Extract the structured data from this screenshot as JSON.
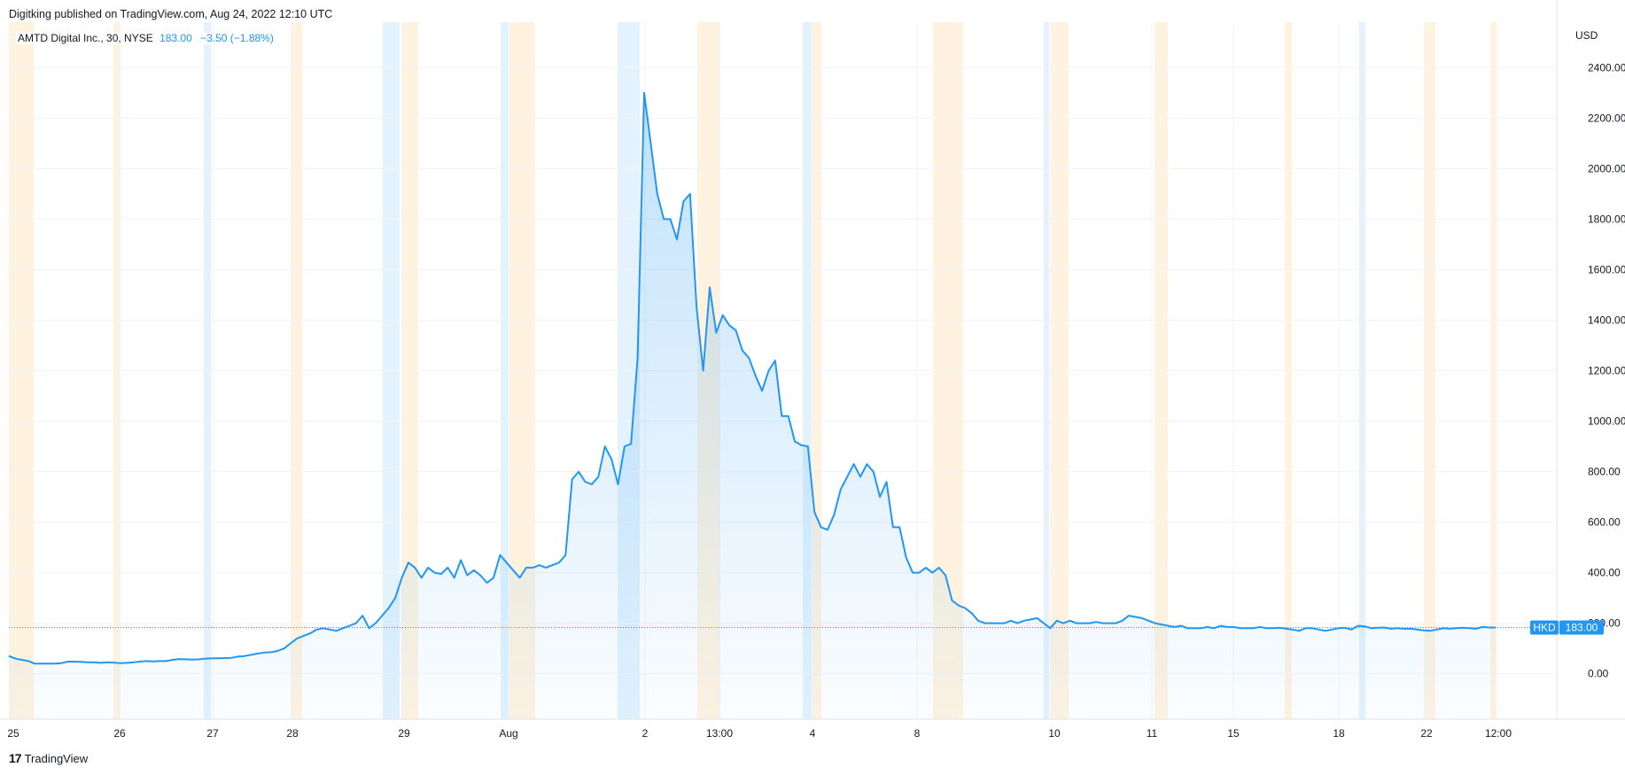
{
  "header": {
    "published": "Digitking published on TradingView.com, Aug 24, 2022 12:10 UTC"
  },
  "legend": {
    "symbol": "AMTD Digital Inc., 30, NYSE",
    "last_price": "183.00",
    "change": "−3.50 (−1.88%)"
  },
  "price_label": {
    "currency_tag": "HKD",
    "value": "183.00"
  },
  "footer": {
    "brand": "TradingView",
    "logo": "tradingview-logo-icon"
  },
  "colors": {
    "line": "#2196f3",
    "area_top": "#2196f3",
    "premarket_band": "#e3f2fd",
    "postmarket_band": "#fff3e0",
    "grid": "#f0f3fa",
    "axis_border": "#e0e3eb",
    "price_tag": "#2196f3"
  },
  "chart_data": {
    "type": "area",
    "title": "AMTD Digital Inc., 30, NYSE",
    "ylabel": "USD",
    "ylim": [
      -180,
      2580
    ],
    "y_ticks": [
      "0.00",
      "200.00",
      "400.00",
      "600.00",
      "800.00",
      "1000.00",
      "1200.00",
      "1400.00",
      "1600.00",
      "1800.00",
      "2000.00",
      "2200.00",
      "2400.00"
    ],
    "x_tick_labels": [
      "25",
      "26",
      "27",
      "28",
      "29",
      "Aug",
      "2",
      "13:00",
      "4",
      "8",
      "10",
      "11",
      "15",
      "18",
      "22",
      "12:00"
    ],
    "grid": true,
    "legend_position": "top-left",
    "series": [
      {
        "values": [
          70,
          60,
          55,
          50,
          40,
          40,
          40,
          40,
          42,
          48,
          48,
          47,
          45,
          45,
          43,
          45,
          44,
          42,
          43,
          45,
          48,
          50,
          49,
          50,
          50,
          55,
          58,
          57,
          56,
          57,
          60,
          61,
          61,
          62,
          63,
          68,
          70,
          75,
          80,
          84,
          85,
          90,
          100,
          120,
          140,
          150,
          160,
          175,
          180,
          175,
          170,
          180,
          190,
          200,
          230,
          180,
          200,
          230,
          260,
          300,
          380,
          440,
          420,
          380,
          420,
          400,
          395,
          420,
          380,
          450,
          390,
          410,
          390,
          360,
          380,
          470,
          440,
          410,
          380,
          420,
          420,
          430,
          420,
          430,
          440,
          470,
          770,
          800,
          760,
          750,
          780,
          900,
          850,
          750,
          900,
          910,
          1250,
          2300,
          2100,
          1900,
          1800,
          1800,
          1720,
          1870,
          1900,
          1450,
          1200,
          1530,
          1350,
          1420,
          1380,
          1360,
          1280,
          1250,
          1180,
          1120,
          1200,
          1240,
          1020,
          1020,
          920,
          905,
          900,
          640,
          580,
          570,
          630,
          730,
          780,
          830,
          780,
          830,
          800,
          700,
          760,
          580,
          580,
          460,
          400,
          400,
          420,
          400,
          420,
          390,
          290,
          270,
          260,
          240,
          210,
          200,
          200,
          200,
          200,
          210,
          200,
          210,
          215,
          220,
          200,
          180,
          210,
          200,
          210,
          200,
          200,
          200,
          205,
          200,
          200,
          200,
          210,
          230,
          225,
          220,
          210,
          200,
          195,
          190,
          185,
          190,
          180,
          180,
          180,
          185,
          180,
          190,
          185,
          185,
          180,
          180,
          180,
          185,
          180,
          180,
          182,
          178,
          175,
          170,
          180,
          180,
          175,
          170,
          175,
          180,
          182,
          175,
          190,
          188,
          180,
          182,
          183,
          178,
          180,
          178,
          178,
          175,
          172,
          170,
          175,
          180,
          178,
          180,
          182,
          180,
          178,
          185,
          183,
          183
        ],
        "close": 183
      }
    ]
  }
}
